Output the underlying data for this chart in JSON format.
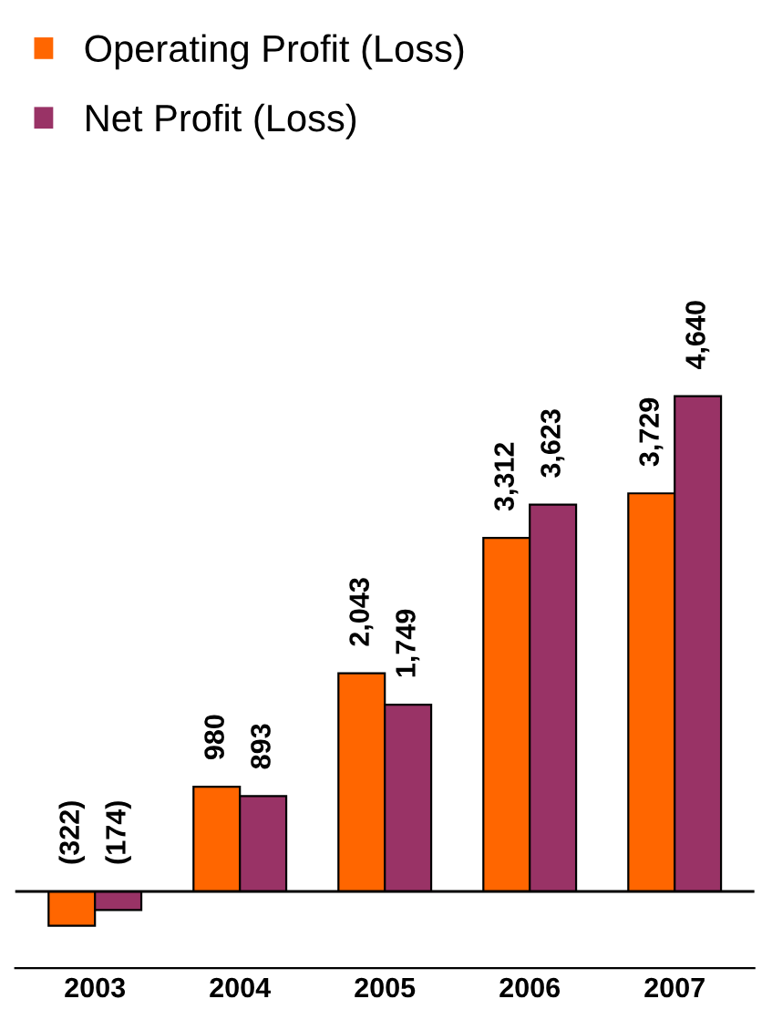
{
  "chart_data": {
    "type": "bar",
    "categories": [
      "2003",
      "2004",
      "2005",
      "2006",
      "2007"
    ],
    "series": [
      {
        "name": "Operating Profit (Loss)",
        "color": "#ff6600",
        "values": [
          -322,
          980,
          2043,
          3312,
          3729
        ],
        "value_labels": [
          "(322)",
          "980",
          "2,043",
          "3,312",
          "3,729"
        ]
      },
      {
        "name": "Net Profit (Loss)",
        "color": "#993366",
        "values": [
          -174,
          893,
          1749,
          3623,
          4640
        ],
        "value_labels": [
          "(174)",
          "893",
          "1,749",
          "3,623",
          "4,640"
        ]
      }
    ],
    "legend": "top left",
    "grid": false
  }
}
